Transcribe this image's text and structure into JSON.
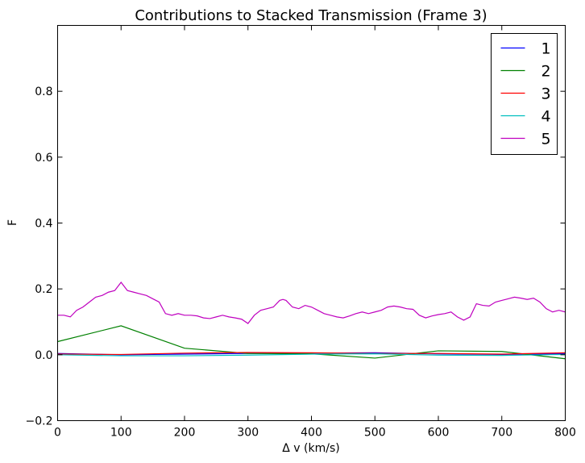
{
  "chart_data": {
    "type": "line",
    "title": "Contributions to Stacked Transmission (Frame 3)",
    "xlabel": "Δ v (km/s)",
    "ylabel": "F",
    "xlim": [
      0,
      800
    ],
    "ylim": [
      -0.2,
      1.0
    ],
    "xticks": [
      0,
      100,
      200,
      300,
      400,
      500,
      600,
      700,
      800
    ],
    "xtick_labels": [
      "0",
      "100",
      "200",
      "300",
      "400",
      "500",
      "600",
      "700",
      "800"
    ],
    "yticks": [
      -0.2,
      0.0,
      0.2,
      0.4,
      0.6,
      0.8
    ],
    "ytick_labels": [
      "−0.2",
      "0.0",
      "0.2",
      "0.4",
      "0.6",
      "0.8"
    ],
    "grid": false,
    "legend_position": "top-right",
    "series": [
      {
        "name": "1",
        "color": "#0000ff",
        "x": [
          0,
          100,
          200,
          300,
          400,
          500,
          600,
          700,
          800
        ],
        "y": [
          0.004,
          0.0,
          0.002,
          0.004,
          0.005,
          0.006,
          0.003,
          0.001,
          0.003
        ]
      },
      {
        "name": "2",
        "color": "#008000",
        "x": [
          0,
          100,
          200,
          300,
          400,
          500,
          600,
          700,
          800
        ],
        "y": [
          0.04,
          0.088,
          0.02,
          0.004,
          0.003,
          -0.01,
          0.012,
          0.01,
          -0.012
        ]
      },
      {
        "name": "3",
        "color": "#ff0000",
        "x": [
          0,
          100,
          200,
          300,
          400,
          500,
          600,
          700,
          800
        ],
        "y": [
          0.002,
          0.001,
          0.005,
          0.007,
          0.006,
          0.004,
          0.004,
          0.002,
          0.006
        ]
      },
      {
        "name": "4",
        "color": "#00bfbf",
        "x": [
          0,
          100,
          200,
          300,
          400,
          500,
          600,
          700,
          800
        ],
        "y": [
          0.0,
          -0.003,
          -0.003,
          -0.001,
          0.002,
          0.003,
          -0.001,
          -0.002,
          0.001
        ]
      },
      {
        "name": "5",
        "color": "#bf00bf",
        "x": [
          0,
          10,
          20,
          30,
          40,
          50,
          60,
          70,
          80,
          90,
          100,
          110,
          120,
          130,
          140,
          150,
          160,
          170,
          180,
          190,
          200,
          210,
          220,
          230,
          240,
          250,
          260,
          270,
          280,
          290,
          300,
          310,
          320,
          330,
          340,
          350,
          355,
          360,
          370,
          380,
          390,
          400,
          410,
          420,
          430,
          440,
          450,
          460,
          470,
          480,
          490,
          500,
          510,
          520,
          530,
          540,
          550,
          560,
          570,
          580,
          590,
          600,
          610,
          620,
          630,
          640,
          650,
          660,
          670,
          680,
          690,
          700,
          710,
          720,
          730,
          740,
          750,
          760,
          770,
          780,
          790,
          800
        ],
        "y": [
          0.12,
          0.12,
          0.115,
          0.135,
          0.145,
          0.16,
          0.175,
          0.18,
          0.19,
          0.195,
          0.22,
          0.195,
          0.19,
          0.185,
          0.18,
          0.17,
          0.16,
          0.125,
          0.12,
          0.125,
          0.12,
          0.12,
          0.118,
          0.112,
          0.11,
          0.115,
          0.12,
          0.115,
          0.112,
          0.108,
          0.095,
          0.12,
          0.135,
          0.14,
          0.145,
          0.165,
          0.168,
          0.165,
          0.145,
          0.14,
          0.15,
          0.145,
          0.135,
          0.125,
          0.12,
          0.115,
          0.112,
          0.118,
          0.125,
          0.13,
          0.125,
          0.13,
          0.135,
          0.145,
          0.148,
          0.145,
          0.14,
          0.138,
          0.12,
          0.112,
          0.118,
          0.122,
          0.125,
          0.13,
          0.115,
          0.105,
          0.115,
          0.155,
          0.15,
          0.148,
          0.16,
          0.165,
          0.17,
          0.175,
          0.172,
          0.168,
          0.172,
          0.16,
          0.14,
          0.13,
          0.135,
          0.13
        ]
      }
    ]
  }
}
